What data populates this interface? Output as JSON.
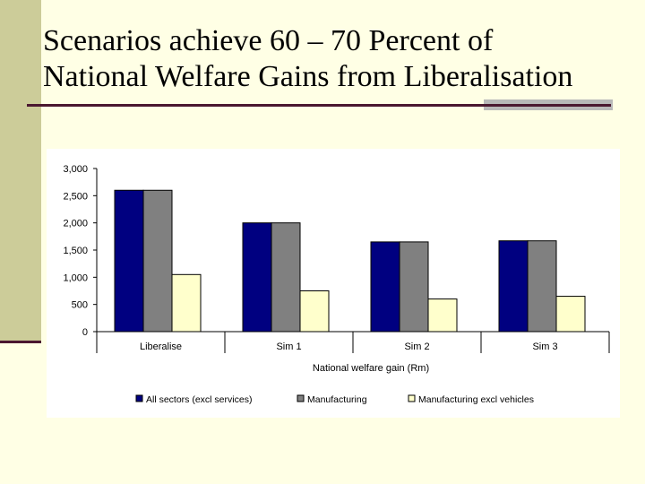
{
  "title": {
    "line1": "Scenarios achieve 60 – 70 Percent of",
    "line2": "National Welfare Gains from Liberalisation"
  },
  "colors": {
    "background": "#FFFFE5",
    "sidebar": "#CCCC99",
    "rule": "#4B1830",
    "rule_accent": "#B8B8B8",
    "series": [
      "#000080",
      "#808080",
      "#FFFFCC"
    ]
  },
  "chart_data": {
    "type": "bar",
    "title": "",
    "xlabel": "National welfare gain (Rm)",
    "ylabel": "",
    "ylim": [
      0,
      3000
    ],
    "yticks": [
      0,
      500,
      1000,
      1500,
      2000,
      2500,
      3000
    ],
    "ytick_labels": [
      "0",
      "500",
      "1,000",
      "1,500",
      "2,000",
      "2,500",
      "3,000"
    ],
    "categories": [
      "Liberalise",
      "Sim 1",
      "Sim 2",
      "Sim 3"
    ],
    "series": [
      {
        "name": "All sectors (excl services)",
        "values": [
          2600,
          2000,
          1650,
          1670
        ]
      },
      {
        "name": "Manufacturing",
        "values": [
          2600,
          2000,
          1650,
          1670
        ]
      },
      {
        "name": "Manufacturing excl vehicles",
        "values": [
          1050,
          750,
          600,
          650
        ]
      }
    ],
    "grid": false,
    "legend": "bottom"
  }
}
